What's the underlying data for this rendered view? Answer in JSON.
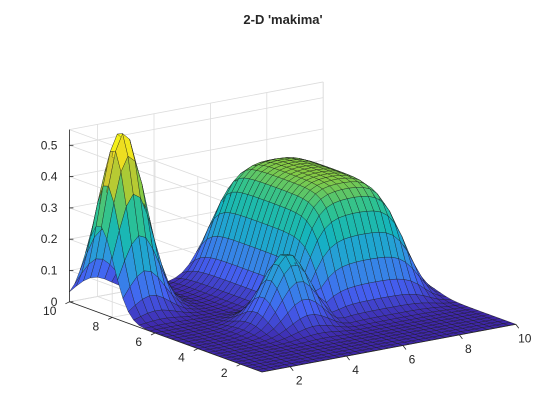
{
  "chart_data": {
    "type": "surface",
    "title": "2-D 'makima'",
    "xlabel": "",
    "ylabel": "",
    "zlabel": "",
    "x_ticks": [
      2,
      4,
      6,
      8,
      10
    ],
    "y_ticks": [
      2,
      4,
      6,
      8,
      10
    ],
    "z_ticks": [
      0,
      0.1,
      0.2,
      0.3,
      0.4,
      0.5
    ],
    "xlim": [
      1,
      10
    ],
    "ylim": [
      1,
      10
    ],
    "zlim": [
      0,
      0.55
    ],
    "grid": true,
    "colormap": "parula",
    "colormap_stops": [
      "#3e26a8",
      "#4462f3",
      "#2f96e0",
      "#12b3c1",
      "#2dc292",
      "#8fcb3b",
      "#e4c92a",
      "#f9fb15"
    ],
    "features": [
      {
        "shape": "peak",
        "x": 1.8,
        "y": 8.6,
        "height": 0.57
      },
      {
        "shape": "peak",
        "x": 4.6,
        "y": 4.6,
        "height": 0.23
      },
      {
        "shape": "plateau",
        "x_range": [
          5.6,
          9.2
        ],
        "y_range": [
          4.6,
          10
        ],
        "height": 0.39
      }
    ]
  }
}
